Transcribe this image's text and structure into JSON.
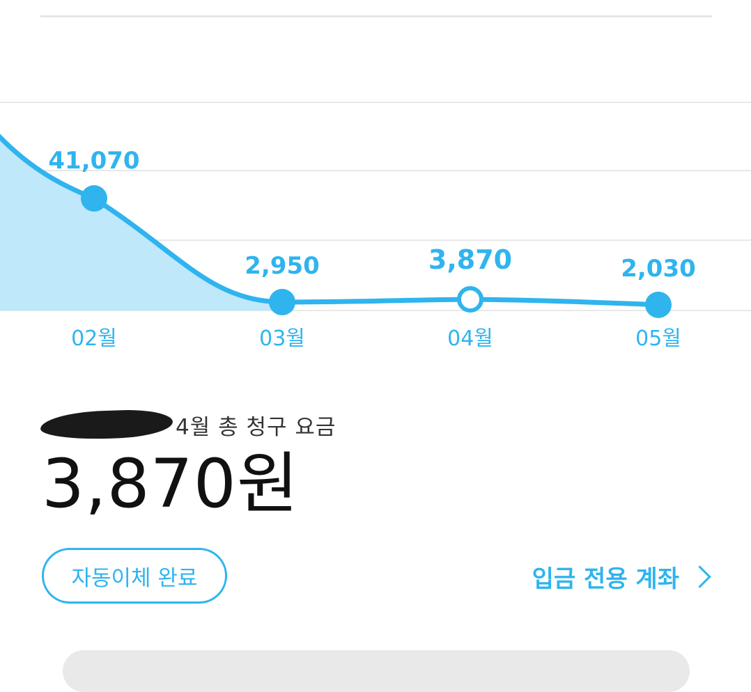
{
  "chart_data": {
    "type": "area",
    "categories": [
      "02월",
      "03월",
      "04월",
      "05월"
    ],
    "values": [
      41070,
      2950,
      3870,
      2030
    ],
    "value_labels": [
      "41,070",
      "2,950",
      "3,870",
      "2,030"
    ],
    "selected_category": "04월",
    "grid": true,
    "colors": {
      "line": "#2fb4ee",
      "fill": "#bfe8fb",
      "label": "#2fb4ee",
      "grid": "#e8e8e8"
    }
  },
  "bill": {
    "caption": "4월 총 청구 요금",
    "amount": "3,870원"
  },
  "actions": {
    "autopay_label": "자동이체 완료",
    "account_link_label": "입금 전용 계좌",
    "account_link_icon": "chevron-right-icon"
  }
}
